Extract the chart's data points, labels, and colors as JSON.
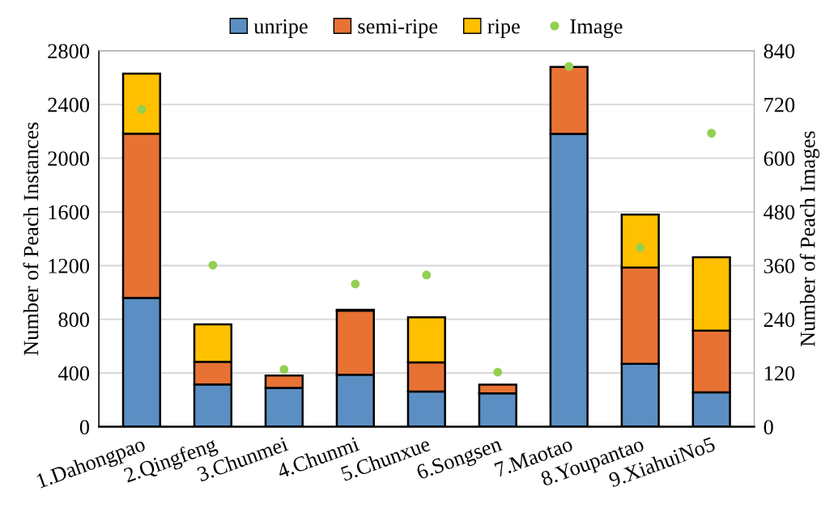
{
  "chart_data": {
    "type": "bar",
    "stacked": true,
    "categories": [
      "1.Dahongpao",
      "2.Qingfeng",
      "3.Chunmei",
      "4.Chunmi",
      "5.Chunxue",
      "6.Songsen",
      "7.Maotao",
      "8.Youpantao",
      "9.XiahuiNo5"
    ],
    "series": [
      {
        "name": "unripe",
        "color": "#5b8fc3",
        "values": [
          960,
          315,
          290,
          387,
          262,
          248,
          2181,
          468,
          256
        ]
      },
      {
        "name": "semi-ripe",
        "color": "#e87234",
        "values": [
          1223,
          169,
          91,
          478,
          217,
          66,
          499,
          718,
          460
        ]
      },
      {
        "name": "ripe",
        "color": "#ffc000",
        "values": [
          447,
          278,
          null,
          6,
          336,
          null,
          null,
          394,
          547
        ]
      },
      {
        "name": "Image",
        "type": "scatter",
        "axis": "y2",
        "color": "#92d050",
        "values": [
          709,
          361,
          128,
          319,
          339,
          122,
          805,
          400,
          656
        ]
      }
    ],
    "ylabel": "Number of Peach Instances",
    "y2label": "Number of Peach Images",
    "ylim": [
      0,
      2800
    ],
    "yticks": [
      0,
      400,
      800,
      1200,
      1600,
      2000,
      2400,
      2800
    ],
    "y2lim": [
      0,
      840
    ],
    "y2ticks": [
      0,
      120,
      240,
      360,
      480,
      600,
      720,
      840
    ],
    "grid": "y",
    "legend": "top",
    "marker": "circle"
  }
}
